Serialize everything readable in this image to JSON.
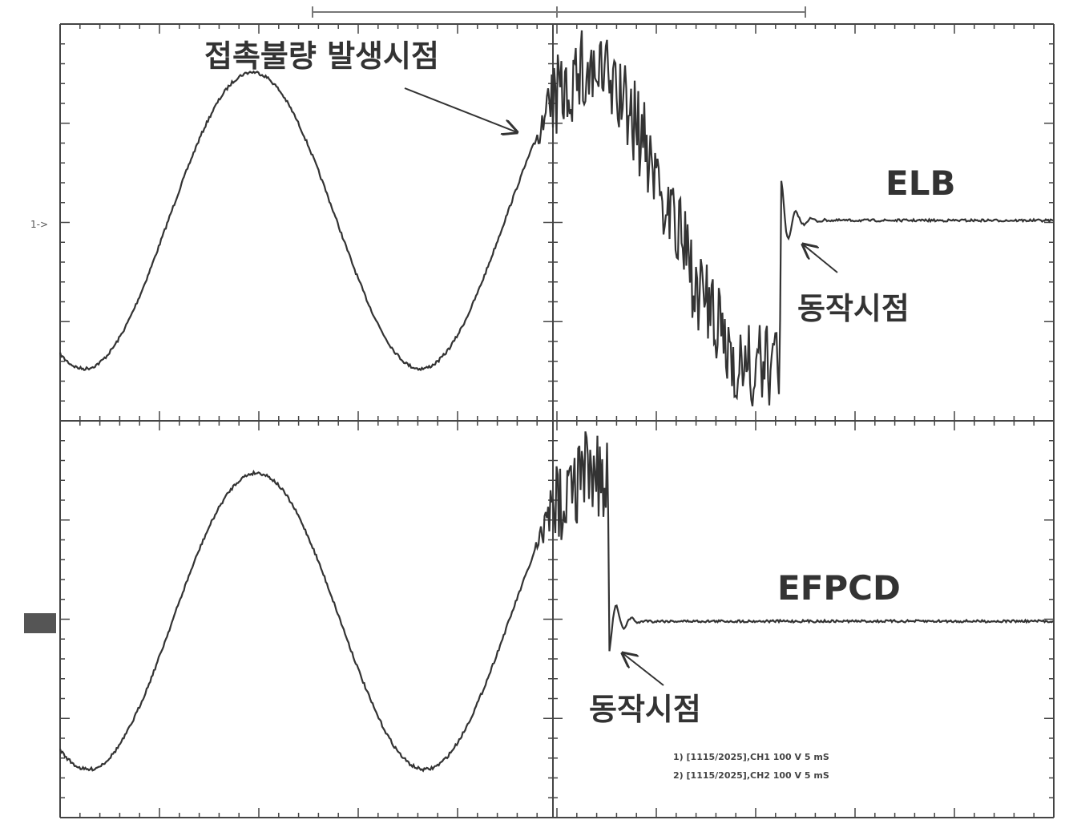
{
  "annotations": {
    "fault_label": "접촉불량 발생시점",
    "ch1_name": "ELB",
    "ch1_trip": "동작시점",
    "ch2_name": "EFPCD",
    "ch2_trip": "동작시점",
    "ch1_marker": "1->"
  },
  "readout": [
    "1) [1115/2025],CH1 100 V 5 mS",
    "2) [1115/2025],CH2 100 V 5 mS"
  ]
}
